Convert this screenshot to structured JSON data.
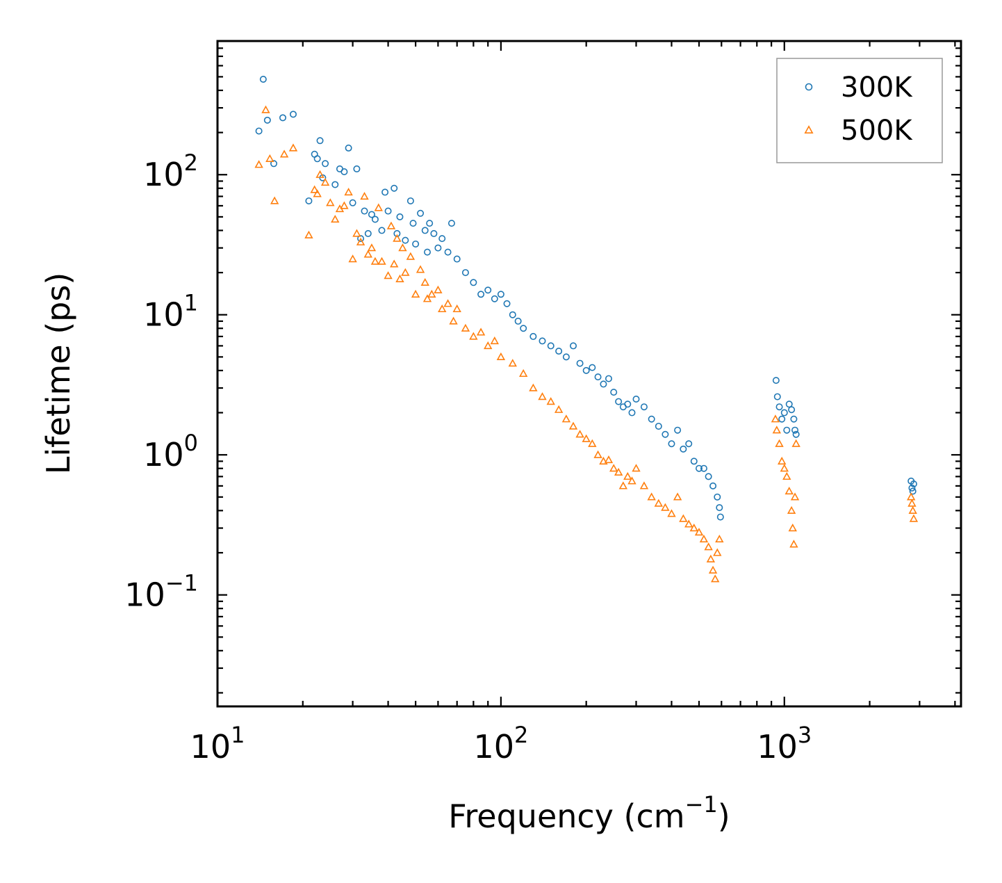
{
  "chart_data": {
    "type": "scatter",
    "title": "",
    "xlabel": {
      "base": "Frequency (cm",
      "exponent": "−1",
      "suffix": ")"
    },
    "ylabel": "Lifetime (ps)",
    "xscale": "log",
    "yscale": "log",
    "xlim": [
      10,
      4200
    ],
    "ylim": [
      0.016,
      900
    ],
    "x_ticks": [
      {
        "value": 10,
        "base": "10",
        "exp": "1"
      },
      {
        "value": 100,
        "base": "10",
        "exp": "2"
      },
      {
        "value": 1000,
        "base": "10",
        "exp": "3"
      }
    ],
    "y_ticks": [
      {
        "value": 0.1,
        "base": "10",
        "exp": "−1"
      },
      {
        "value": 1,
        "base": "10",
        "exp": "0"
      },
      {
        "value": 10,
        "base": "10",
        "exp": "1"
      },
      {
        "value": 100,
        "base": "10",
        "exp": "2"
      }
    ],
    "legend_position": "top-right",
    "series": [
      {
        "name": "300K",
        "marker": "circle-open",
        "color": "#1f77b4",
        "points": [
          [
            14.5,
            480
          ],
          [
            14.0,
            205
          ],
          [
            15.0,
            245
          ],
          [
            15.8,
            120
          ],
          [
            17.0,
            255
          ],
          [
            18.5,
            270
          ],
          [
            21,
            65
          ],
          [
            22,
            140
          ],
          [
            22.5,
            130
          ],
          [
            23,
            175
          ],
          [
            23.5,
            95
          ],
          [
            24,
            120
          ],
          [
            26,
            85
          ],
          [
            27,
            110
          ],
          [
            28,
            105
          ],
          [
            29,
            155
          ],
          [
            30,
            63
          ],
          [
            31,
            110
          ],
          [
            32,
            35
          ],
          [
            33,
            55
          ],
          [
            34,
            38
          ],
          [
            35,
            52
          ],
          [
            36,
            48
          ],
          [
            38,
            40
          ],
          [
            39,
            75
          ],
          [
            40,
            55
          ],
          [
            42,
            80
          ],
          [
            43,
            38
          ],
          [
            44,
            50
          ],
          [
            46,
            34
          ],
          [
            48,
            65
          ],
          [
            49,
            45
          ],
          [
            50,
            32
          ],
          [
            52,
            53
          ],
          [
            54,
            40
          ],
          [
            55,
            28
          ],
          [
            56,
            45
          ],
          [
            58,
            38
          ],
          [
            60,
            30
          ],
          [
            62,
            35
          ],
          [
            65,
            28
          ],
          [
            67,
            45
          ],
          [
            70,
            25
          ],
          [
            75,
            20
          ],
          [
            80,
            17
          ],
          [
            85,
            14
          ],
          [
            90,
            15
          ],
          [
            95,
            13
          ],
          [
            100,
            14
          ],
          [
            105,
            12
          ],
          [
            110,
            10
          ],
          [
            115,
            9
          ],
          [
            120,
            8
          ],
          [
            130,
            7
          ],
          [
            140,
            6.5
          ],
          [
            150,
            6
          ],
          [
            160,
            5.5
          ],
          [
            170,
            5
          ],
          [
            180,
            6
          ],
          [
            190,
            4.5
          ],
          [
            200,
            4
          ],
          [
            210,
            4.2
          ],
          [
            220,
            3.6
          ],
          [
            230,
            3.2
          ],
          [
            240,
            3.5
          ],
          [
            250,
            2.8
          ],
          [
            260,
            2.4
          ],
          [
            270,
            2.2
          ],
          [
            280,
            2.3
          ],
          [
            290,
            2.0
          ],
          [
            300,
            2.5
          ],
          [
            320,
            2.2
          ],
          [
            340,
            1.8
          ],
          [
            360,
            1.6
          ],
          [
            380,
            1.4
          ],
          [
            400,
            1.2
          ],
          [
            420,
            1.5
          ],
          [
            440,
            1.1
          ],
          [
            460,
            1.2
          ],
          [
            480,
            0.9
          ],
          [
            500,
            0.8
          ],
          [
            520,
            0.8
          ],
          [
            540,
            0.7
          ],
          [
            560,
            0.6
          ],
          [
            580,
            0.5
          ],
          [
            590,
            0.42
          ],
          [
            595,
            0.36
          ],
          [
            935,
            3.4
          ],
          [
            945,
            2.6
          ],
          [
            960,
            2.2
          ],
          [
            980,
            1.8
          ],
          [
            1000,
            2.0
          ],
          [
            1020,
            1.5
          ],
          [
            1040,
            2.3
          ],
          [
            1060,
            2.1
          ],
          [
            1080,
            1.8
          ],
          [
            1090,
            1.5
          ],
          [
            1100,
            1.4
          ],
          [
            2800,
            0.65
          ],
          [
            2820,
            0.58
          ],
          [
            2840,
            0.55
          ],
          [
            2860,
            0.62
          ]
        ]
      },
      {
        "name": "500K",
        "marker": "triangle-open",
        "color": "#ff7f0e",
        "points": [
          [
            14.0,
            118
          ],
          [
            14.8,
            290
          ],
          [
            15.3,
            130
          ],
          [
            15.9,
            65
          ],
          [
            17.2,
            140
          ],
          [
            18.5,
            155
          ],
          [
            21,
            37
          ],
          [
            22,
            78
          ],
          [
            22.5,
            73
          ],
          [
            23,
            100
          ],
          [
            24,
            88
          ],
          [
            25,
            63
          ],
          [
            26,
            48
          ],
          [
            27,
            57
          ],
          [
            28,
            60
          ],
          [
            29,
            75
          ],
          [
            30,
            25
          ],
          [
            31,
            38
          ],
          [
            32,
            33
          ],
          [
            33,
            70
          ],
          [
            34,
            27
          ],
          [
            35,
            30
          ],
          [
            36,
            24
          ],
          [
            37,
            58
          ],
          [
            38,
            24
          ],
          [
            40,
            19
          ],
          [
            41,
            43
          ],
          [
            42,
            23
          ],
          [
            43,
            35
          ],
          [
            44,
            18
          ],
          [
            45,
            30
          ],
          [
            46,
            20
          ],
          [
            48,
            26
          ],
          [
            50,
            14
          ],
          [
            52,
            21
          ],
          [
            54,
            17
          ],
          [
            55,
            13
          ],
          [
            57,
            14
          ],
          [
            60,
            15
          ],
          [
            62,
            11
          ],
          [
            65,
            12
          ],
          [
            68,
            9
          ],
          [
            70,
            11
          ],
          [
            75,
            8
          ],
          [
            80,
            7
          ],
          [
            85,
            7.5
          ],
          [
            90,
            6
          ],
          [
            95,
            6.5
          ],
          [
            100,
            5
          ],
          [
            110,
            4.5
          ],
          [
            120,
            3.8
          ],
          [
            130,
            3
          ],
          [
            140,
            2.6
          ],
          [
            150,
            2.4
          ],
          [
            160,
            2.1
          ],
          [
            170,
            1.8
          ],
          [
            180,
            1.6
          ],
          [
            190,
            1.4
          ],
          [
            200,
            1.3
          ],
          [
            210,
            1.2
          ],
          [
            220,
            1.0
          ],
          [
            230,
            0.9
          ],
          [
            240,
            0.92
          ],
          [
            250,
            0.8
          ],
          [
            260,
            0.75
          ],
          [
            270,
            0.6
          ],
          [
            280,
            0.7
          ],
          [
            290,
            0.65
          ],
          [
            300,
            0.8
          ],
          [
            320,
            0.6
          ],
          [
            340,
            0.5
          ],
          [
            360,
            0.45
          ],
          [
            380,
            0.42
          ],
          [
            400,
            0.38
          ],
          [
            420,
            0.5
          ],
          [
            440,
            0.35
          ],
          [
            460,
            0.32
          ],
          [
            480,
            0.3
          ],
          [
            500,
            0.28
          ],
          [
            520,
            0.25
          ],
          [
            540,
            0.22
          ],
          [
            550,
            0.18
          ],
          [
            560,
            0.15
          ],
          [
            570,
            0.13
          ],
          [
            580,
            0.2
          ],
          [
            590,
            0.25
          ],
          [
            930,
            1.8
          ],
          [
            940,
            1.5
          ],
          [
            960,
            1.2
          ],
          [
            980,
            0.9
          ],
          [
            1000,
            0.8
          ],
          [
            1020,
            0.7
          ],
          [
            1040,
            0.55
          ],
          [
            1060,
            0.4
          ],
          [
            1070,
            0.3
          ],
          [
            1080,
            0.23
          ],
          [
            1090,
            0.5
          ],
          [
            1100,
            1.2
          ],
          [
            2800,
            0.5
          ],
          [
            2820,
            0.45
          ],
          [
            2840,
            0.4
          ],
          [
            2860,
            0.35
          ]
        ]
      }
    ]
  }
}
